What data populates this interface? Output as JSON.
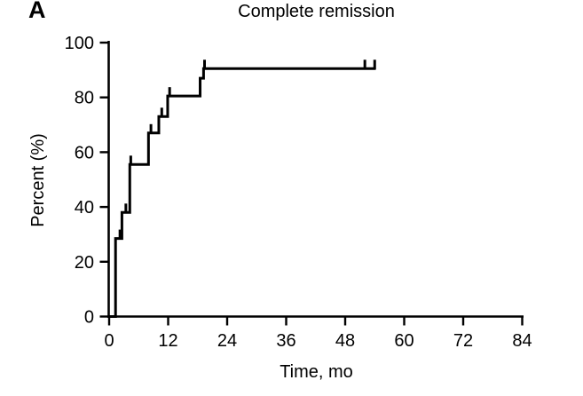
{
  "panel_label": "A",
  "colors": {
    "curve": "#000000",
    "axis": "#000000",
    "text": "#000000",
    "background": "#ffffff"
  },
  "chart_data": {
    "type": "line",
    "subtype": "kaplan-meier-step",
    "title": "Complete remission",
    "xlabel": "Time, mo",
    "ylabel": "Percent (%)",
    "xlim": [
      0,
      84
    ],
    "ylim": [
      0,
      100
    ],
    "x_ticks": [
      0,
      12,
      24,
      36,
      48,
      60,
      72,
      84
    ],
    "y_ticks": [
      0,
      20,
      40,
      60,
      80,
      100
    ],
    "grid": false,
    "legend": null,
    "series": [
      {
        "name": "Complete remission",
        "steps": [
          [
            0,
            0
          ],
          [
            1.3,
            28.5
          ],
          [
            2.6,
            38
          ],
          [
            4.2,
            55.5
          ],
          [
            8,
            67
          ],
          [
            10.1,
            73
          ],
          [
            11.9,
            80.5
          ],
          [
            18.5,
            87
          ],
          [
            19.2,
            90.5
          ]
        ],
        "end_time": 54.2,
        "final_percent": 90.5,
        "censor_marks": [
          [
            2.2,
            28.5
          ],
          [
            3.4,
            38
          ],
          [
            4.4,
            55.5
          ],
          [
            8.5,
            67
          ],
          [
            10.7,
            73
          ],
          [
            12.3,
            80.5
          ],
          [
            19.4,
            90.5
          ],
          [
            52,
            90.5
          ],
          [
            54,
            90.5
          ]
        ]
      }
    ]
  }
}
